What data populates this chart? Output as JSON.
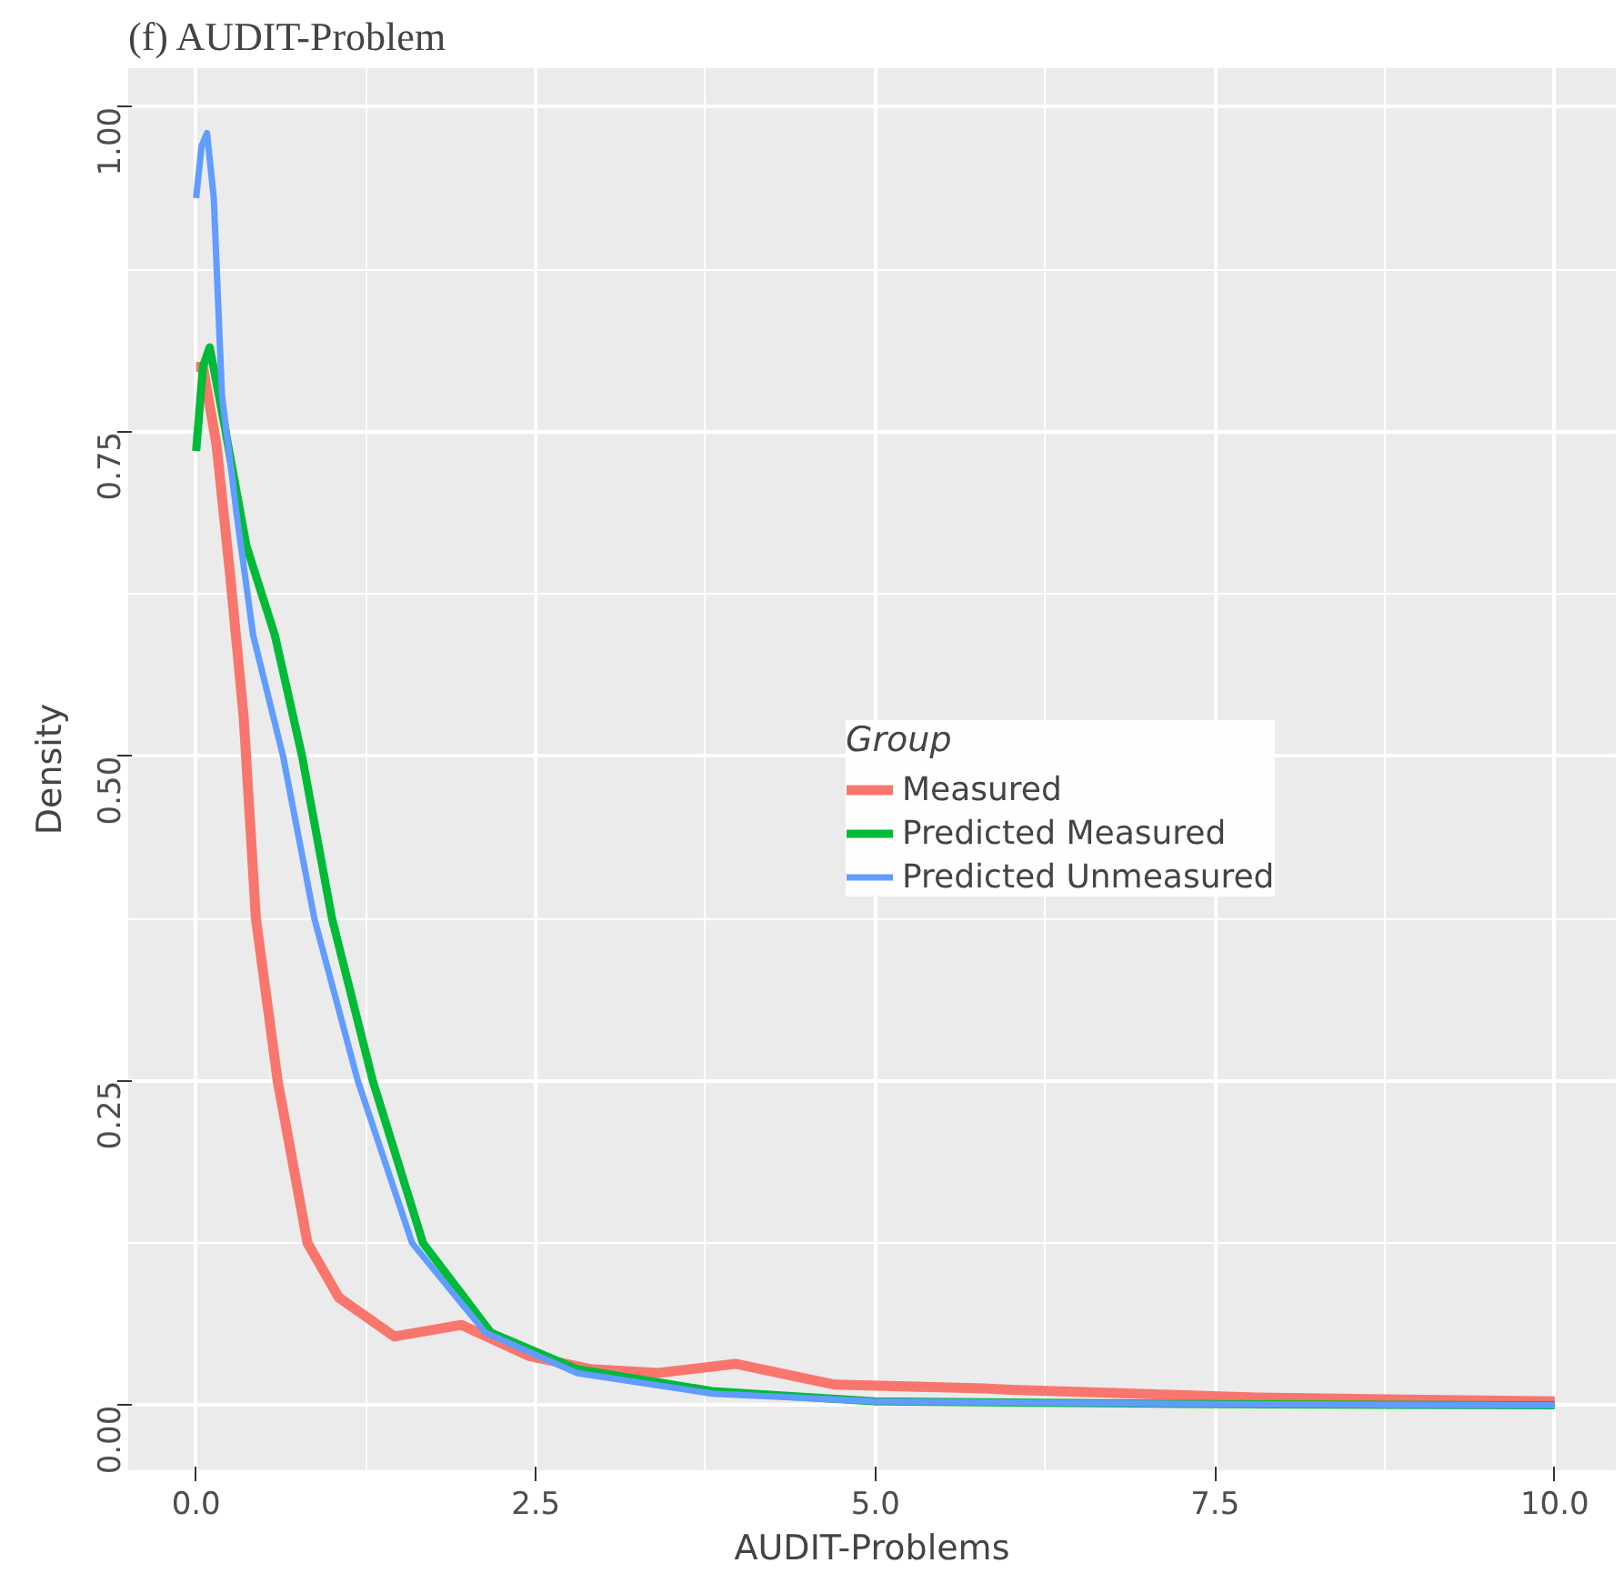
{
  "chart_data": {
    "type": "line",
    "title": "(f) AUDIT-Problem",
    "xlabel": "AUDIT-Problems",
    "ylabel": "Density",
    "legend_title": "Group",
    "xlim": [
      -0.5,
      10.45
    ],
    "ylim": [
      -0.05,
      1.03
    ],
    "xticks": [
      {
        "value": 0,
        "label": "0.0"
      },
      2.5,
      {
        "value": 5,
        "label": "5.0"
      },
      7.5,
      {
        "value": 10,
        "label": "10.0"
      }
    ],
    "yticks": [
      {
        "value": 0,
        "label": "0.00"
      },
      0.25,
      {
        "value": 0.5,
        "label": "0.50"
      },
      0.75,
      {
        "value": 1,
        "label": "1.00"
      }
    ],
    "grid": true,
    "legend": "center right",
    "series": [
      {
        "name": "Measured",
        "color": "#f8766d",
        "x": [
          0,
          0.05,
          0.15,
          0.25,
          0.35,
          0.44,
          0.6,
          0.82,
          1.05,
          1.46,
          1.95,
          2.45,
          2.9,
          3.4,
          3.97,
          4.47,
          4.7,
          5.8,
          6.0,
          7.8,
          10
        ],
        "values": [
          0.8,
          0.8,
          0.74,
          0.64,
          0.53,
          0.375,
          0.25,
          0.125,
          0.083,
          0.053,
          0.062,
          0.038,
          0.028,
          0.025,
          0.032,
          0.021,
          0.016,
          0.013,
          0.012,
          0.006,
          0.003
        ]
      },
      {
        "name": "Predicted Measured",
        "color": "#00ba38",
        "x": [
          0,
          0.05,
          0.1,
          0.2,
          0.37,
          0.58,
          0.78,
          1.0,
          1.3,
          1.67,
          2.17,
          2.8,
          3.8,
          5,
          7.5,
          10
        ],
        "values": [
          0.735,
          0.8,
          0.815,
          0.76,
          0.662,
          0.593,
          0.5,
          0.375,
          0.25,
          0.125,
          0.056,
          0.028,
          0.011,
          0.003,
          0.001,
          0
        ]
      },
      {
        "name": "Predicted Unmeasured",
        "color": "#619cff",
        "x": [
          0,
          0.04,
          0.08,
          0.13,
          0.19,
          0.3,
          0.42,
          0.64,
          0.87,
          1.19,
          1.59,
          2.13,
          2.8,
          3.8,
          5,
          7.5,
          10
        ],
        "values": [
          0.93,
          0.97,
          0.98,
          0.93,
          0.778,
          0.685,
          0.593,
          0.5,
          0.375,
          0.25,
          0.125,
          0.056,
          0.025,
          0.009,
          0.003,
          0.001,
          0
        ]
      }
    ]
  }
}
